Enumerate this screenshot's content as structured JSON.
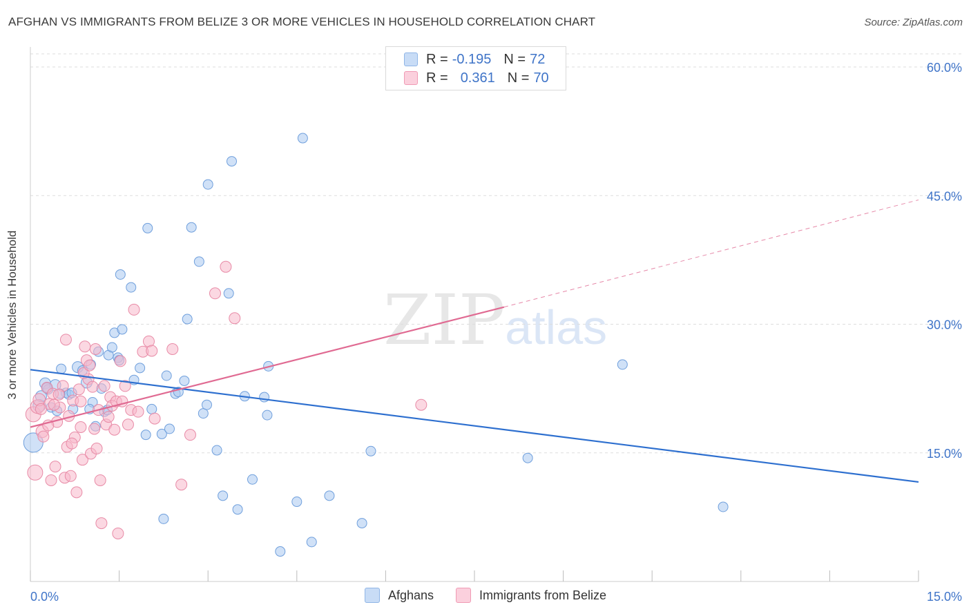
{
  "title": "AFGHAN VS IMMIGRANTS FROM BELIZE 3 OR MORE VEHICLES IN HOUSEHOLD CORRELATION CHART",
  "source": "Source: ZipAtlas.com",
  "watermark": {
    "zip": "ZIP",
    "atlas": "atlas"
  },
  "stats": [
    {
      "r_label": "R =",
      "r_value": "-0.195",
      "n_label": "N =",
      "n_value": "72",
      "color": "#a9c8f0"
    },
    {
      "r_label": "R =",
      "r_value": "0.361",
      "n_label": "N =",
      "n_value": "70",
      "color": "#f7b8cb"
    }
  ],
  "legend": [
    {
      "label": "Afghans",
      "color": "#a9c8f0"
    },
    {
      "label": "Immigrants from Belize",
      "color": "#f7b8cb"
    }
  ],
  "chart_data": {
    "type": "scatter",
    "title": "AFGHAN VS IMMIGRANTS FROM BELIZE 3 OR MORE VEHICLES IN HOUSEHOLD CORRELATION CHART",
    "ylabel": "3 or more Vehicles in Household",
    "xlabel": "",
    "xlim": [
      0,
      15
    ],
    "ylim": [
      0,
      61
    ],
    "x_ticks": [
      "0.0%",
      "15.0%"
    ],
    "y_ticks": [
      {
        "value": 15,
        "label": "15.0%"
      },
      {
        "value": 30,
        "label": "30.0%"
      },
      {
        "value": 45,
        "label": "45.0%"
      },
      {
        "value": 60,
        "label": "60.0%"
      }
    ],
    "grid": "horizontal dashed",
    "legend_position": "bottom-center",
    "series": [
      {
        "name": "Afghans",
        "color": "#a9c8f0",
        "stroke": "#6f9fdc",
        "trend": {
          "x0": 0,
          "y0": 24.7,
          "x1": 15,
          "y1": 11.6,
          "color": "#2d6fcf"
        },
        "points": [
          [
            0.05,
            16.2,
            14
          ],
          [
            0.15,
            20.5,
            9
          ],
          [
            0.18,
            21.6,
            8
          ],
          [
            0.25,
            23.1,
            8
          ],
          [
            0.3,
            22.4,
            7
          ],
          [
            0.35,
            20.3,
            7
          ],
          [
            0.42,
            22.9,
            8
          ],
          [
            0.45,
            19.9,
            7
          ],
          [
            0.52,
            24.8,
            7
          ],
          [
            0.6,
            22.0,
            7
          ],
          [
            0.65,
            21.8,
            7
          ],
          [
            0.72,
            20.1,
            7
          ],
          [
            0.8,
            25.0,
            8
          ],
          [
            0.88,
            24.6,
            7
          ],
          [
            0.95,
            23.2,
            8
          ],
          [
            1.02,
            25.3,
            7
          ],
          [
            1.05,
            20.9,
            7
          ],
          [
            1.1,
            18.1,
            7
          ],
          [
            1.15,
            26.8,
            7
          ],
          [
            1.2,
            22.5,
            7
          ],
          [
            1.25,
            19.8,
            7
          ],
          [
            1.32,
            26.4,
            7
          ],
          [
            1.38,
            27.3,
            7
          ],
          [
            1.42,
            29.0,
            7
          ],
          [
            1.48,
            26.1,
            7
          ],
          [
            1.5,
            25.8,
            7
          ],
          [
            1.55,
            29.4,
            7
          ],
          [
            1.52,
            35.8,
            7
          ],
          [
            1.7,
            34.3,
            7
          ],
          [
            1.75,
            23.5,
            7
          ],
          [
            1.85,
            24.9,
            7
          ],
          [
            1.98,
            41.2,
            7
          ],
          [
            2.05,
            20.1,
            7
          ],
          [
            1.95,
            17.1,
            7
          ],
          [
            2.3,
            24.0,
            7
          ],
          [
            2.22,
            17.2,
            7
          ],
          [
            2.35,
            17.8,
            7
          ],
          [
            2.45,
            21.9,
            7
          ],
          [
            2.5,
            22.1,
            7
          ],
          [
            2.6,
            23.4,
            7
          ],
          [
            2.65,
            30.6,
            7
          ],
          [
            2.72,
            41.3,
            7
          ],
          [
            2.85,
            37.3,
            7
          ],
          [
            2.92,
            19.6,
            7
          ],
          [
            2.98,
            20.6,
            7
          ],
          [
            3.0,
            46.3,
            7
          ],
          [
            3.15,
            15.3,
            7
          ],
          [
            3.25,
            10.0,
            7
          ],
          [
            3.35,
            33.6,
            7
          ],
          [
            3.4,
            49.0,
            7
          ],
          [
            3.5,
            8.4,
            7
          ],
          [
            3.62,
            21.6,
            7
          ],
          [
            3.75,
            11.9,
            7
          ],
          [
            3.95,
            21.5,
            7
          ],
          [
            4.0,
            19.4,
            7
          ],
          [
            4.02,
            25.1,
            7
          ],
          [
            4.22,
            3.5,
            7
          ],
          [
            4.5,
            9.3,
            7
          ],
          [
            4.6,
            51.7,
            7
          ],
          [
            4.75,
            4.6,
            7
          ],
          [
            5.05,
            10.0,
            7
          ],
          [
            5.6,
            6.8,
            7
          ],
          [
            5.75,
            15.2,
            7
          ],
          [
            2.25,
            7.3,
            7
          ],
          [
            8.4,
            14.4,
            7
          ],
          [
            10.0,
            25.3,
            7
          ],
          [
            11.7,
            8.7,
            7
          ],
          [
            0.5,
            21.9,
            7
          ],
          [
            0.7,
            22.0,
            7
          ],
          [
            1.0,
            20.1,
            7
          ],
          [
            0.28,
            22.6,
            7
          ],
          [
            1.3,
            20.0,
            7
          ]
        ]
      },
      {
        "name": "Immigrants from Belize",
        "color": "#f7b8cb",
        "stroke": "#e88aa6",
        "trend": {
          "x0": 0,
          "y0": 18.0,
          "x1": 8.0,
          "y1": 32.0,
          "x2": 15,
          "y2": 44.5,
          "color": "#e06a92"
        },
        "points": [
          [
            0.05,
            19.5,
            11
          ],
          [
            0.08,
            12.7,
            11
          ],
          [
            0.12,
            20.4,
            10
          ],
          [
            0.15,
            21.2,
            9
          ],
          [
            0.2,
            17.5,
            9
          ],
          [
            0.22,
            16.9,
            8
          ],
          [
            0.28,
            22.6,
            8
          ],
          [
            0.32,
            20.7,
            8
          ],
          [
            0.35,
            11.8,
            8
          ],
          [
            0.38,
            21.9,
            8
          ],
          [
            0.42,
            13.4,
            8
          ],
          [
            0.45,
            18.6,
            8
          ],
          [
            0.5,
            20.3,
            8
          ],
          [
            0.55,
            22.8,
            8
          ],
          [
            0.58,
            12.1,
            8
          ],
          [
            0.62,
            15.7,
            8
          ],
          [
            0.65,
            19.3,
            8
          ],
          [
            0.68,
            12.3,
            8
          ],
          [
            0.72,
            21.1,
            8
          ],
          [
            0.75,
            16.8,
            8
          ],
          [
            0.78,
            10.4,
            8
          ],
          [
            0.82,
            22.4,
            8
          ],
          [
            0.85,
            21.0,
            8
          ],
          [
            0.88,
            14.2,
            8
          ],
          [
            0.92,
            27.4,
            8
          ],
          [
            0.95,
            25.8,
            8
          ],
          [
            0.98,
            23.6,
            8
          ],
          [
            1.02,
            14.9,
            8
          ],
          [
            1.05,
            22.7,
            8
          ],
          [
            1.08,
            17.8,
            8
          ],
          [
            1.12,
            15.5,
            8
          ],
          [
            1.15,
            20.0,
            8
          ],
          [
            1.18,
            11.8,
            8
          ],
          [
            1.2,
            6.8,
            8
          ],
          [
            1.25,
            22.8,
            8
          ],
          [
            1.28,
            18.3,
            8
          ],
          [
            1.32,
            19.2,
            8
          ],
          [
            1.35,
            21.5,
            8
          ],
          [
            1.38,
            20.5,
            8
          ],
          [
            1.42,
            17.7,
            8
          ],
          [
            1.45,
            21.0,
            8
          ],
          [
            1.48,
            5.6,
            8
          ],
          [
            1.52,
            25.7,
            8
          ],
          [
            1.55,
            21.0,
            8
          ],
          [
            1.6,
            22.8,
            8
          ],
          [
            1.65,
            18.3,
            8
          ],
          [
            1.7,
            20.0,
            8
          ],
          [
            1.75,
            31.7,
            8
          ],
          [
            1.82,
            19.8,
            8
          ],
          [
            1.9,
            26.8,
            8
          ],
          [
            2.0,
            28.0,
            8
          ],
          [
            2.05,
            26.9,
            8
          ],
          [
            2.1,
            19.0,
            8
          ],
          [
            2.4,
            27.1,
            8
          ],
          [
            2.55,
            11.3,
            8
          ],
          [
            2.7,
            17.1,
            8
          ],
          [
            3.12,
            33.6,
            8
          ],
          [
            3.3,
            36.7,
            8
          ],
          [
            3.45,
            30.7,
            8
          ],
          [
            6.6,
            20.6,
            8
          ],
          [
            0.6,
            28.2,
            8
          ],
          [
            0.4,
            20.6,
            8
          ],
          [
            0.3,
            18.2,
            8
          ],
          [
            0.9,
            24.3,
            8
          ],
          [
            1.0,
            25.2,
            8
          ],
          [
            0.7,
            16.1,
            8
          ],
          [
            1.1,
            27.1,
            8
          ],
          [
            0.85,
            18.0,
            8
          ],
          [
            0.48,
            21.8,
            8
          ],
          [
            0.18,
            20.1,
            8
          ]
        ]
      }
    ]
  }
}
